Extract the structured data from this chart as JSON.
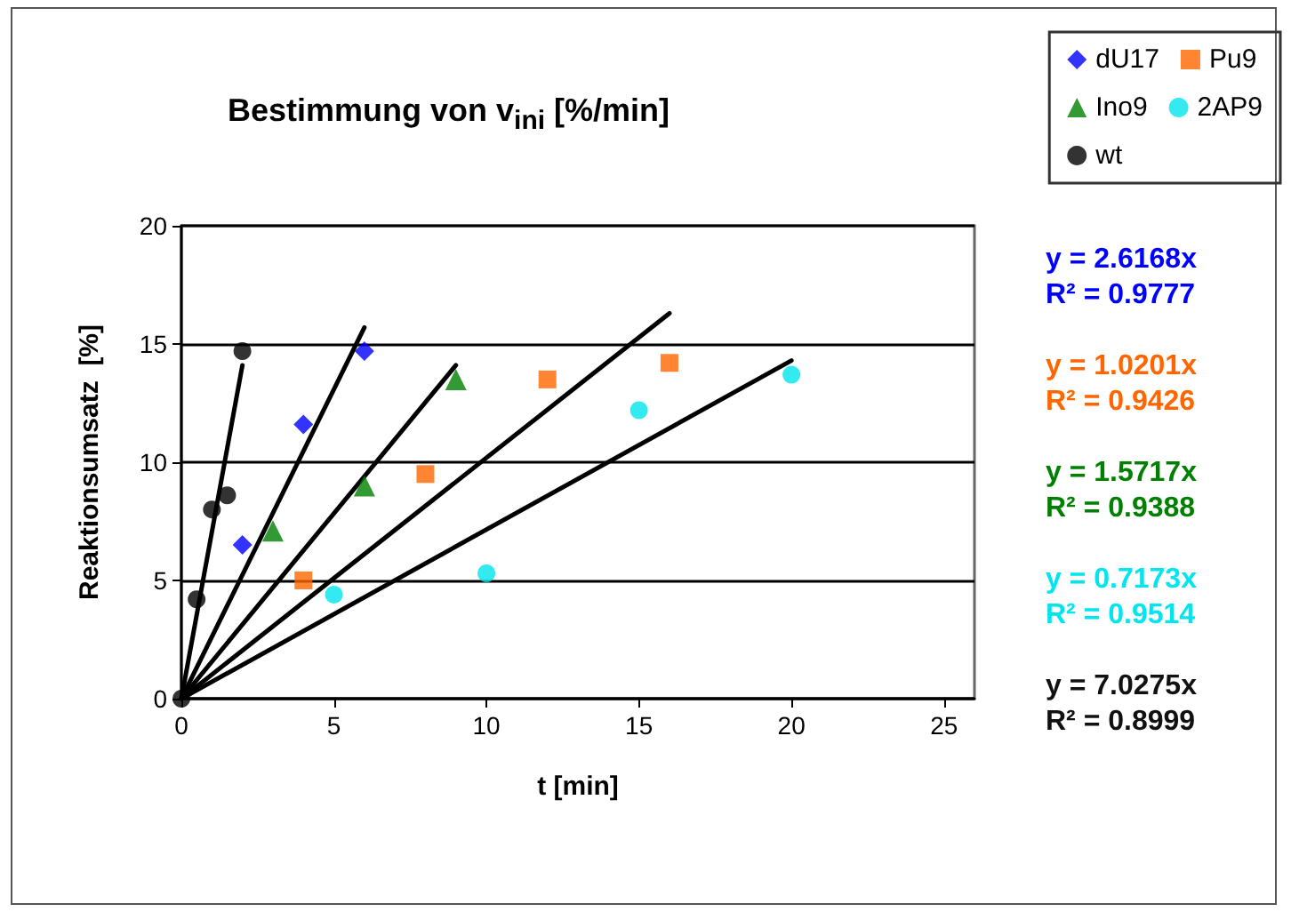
{
  "chart_data": {
    "type": "scatter",
    "title": "Bestimmung von v$_{ini}$ [%/min]",
    "xlabel": "t [min]",
    "ylabel": "Reaktionsumsatz  [%]",
    "xlim": [
      0,
      26
    ],
    "xticks": [
      0,
      5,
      10,
      15,
      20,
      25
    ],
    "ylim": [
      0,
      20
    ],
    "yticks": [
      0,
      5,
      10,
      15,
      20
    ],
    "grid": "y",
    "legend": "top right",
    "series": [
      {
        "name": "dU17",
        "color": "#0000ff",
        "marker": "diamond",
        "x": [
          2,
          4,
          6
        ],
        "values": [
          6.5,
          11.6,
          14.7
        ]
      },
      {
        "name": "Pu9",
        "color": "#ff6600",
        "marker": "square",
        "x": [
          4,
          8,
          12,
          16
        ],
        "values": [
          5,
          9.5,
          13.5,
          14.2
        ]
      },
      {
        "name": "Ino9",
        "color": "#008000",
        "marker": "triangle",
        "x": [
          3,
          6,
          9
        ],
        "values": [
          7.1,
          9,
          13.5
        ]
      },
      {
        "name": "2AP9",
        "color": "#00e5ee",
        "marker": "circle",
        "x": [
          5,
          10,
          15,
          20
        ],
        "values": [
          4.4,
          5.3,
          12.2,
          13.7
        ]
      },
      {
        "name": "wt",
        "color": "#000000",
        "marker": "circle",
        "x": [
          0,
          0.5,
          1,
          1.5,
          2
        ],
        "values": [
          0,
          4.2,
          8,
          8.6,
          14.7
        ]
      },
      {
        "type": "line",
        "color": "#000000",
        "marker": "none",
        "line_style": "solid",
        "x": [
          0,
          6
        ],
        "values": [
          0,
          15.7
        ]
      },
      {
        "type": "line",
        "color": "#000000",
        "marker": "none",
        "line_style": "solid",
        "x": [
          0,
          16
        ],
        "values": [
          0,
          16.3
        ]
      },
      {
        "type": "line",
        "color": "#000000",
        "marker": "none",
        "line_style": "solid",
        "x": [
          0,
          9
        ],
        "values": [
          0,
          14.1
        ]
      },
      {
        "type": "line",
        "color": "#000000",
        "marker": "none",
        "line_style": "solid",
        "x": [
          0,
          20
        ],
        "values": [
          0,
          14.3
        ]
      },
      {
        "type": "line",
        "color": "#000000",
        "marker": "none",
        "line_style": "solid",
        "x": [
          0,
          2
        ],
        "values": [
          0,
          14.1
        ]
      }
    ],
    "annotations": [
      "y = 2.6168x",
      "R² = 0.9777",
      "y = 1.0201x",
      "R² = 0.9426",
      "y = 1.5717x",
      "R² = 0.9388",
      "y = 0.7173x",
      "R² = 0.9514",
      "y = 7.0275x",
      "R² = 0.8999"
    ]
  }
}
